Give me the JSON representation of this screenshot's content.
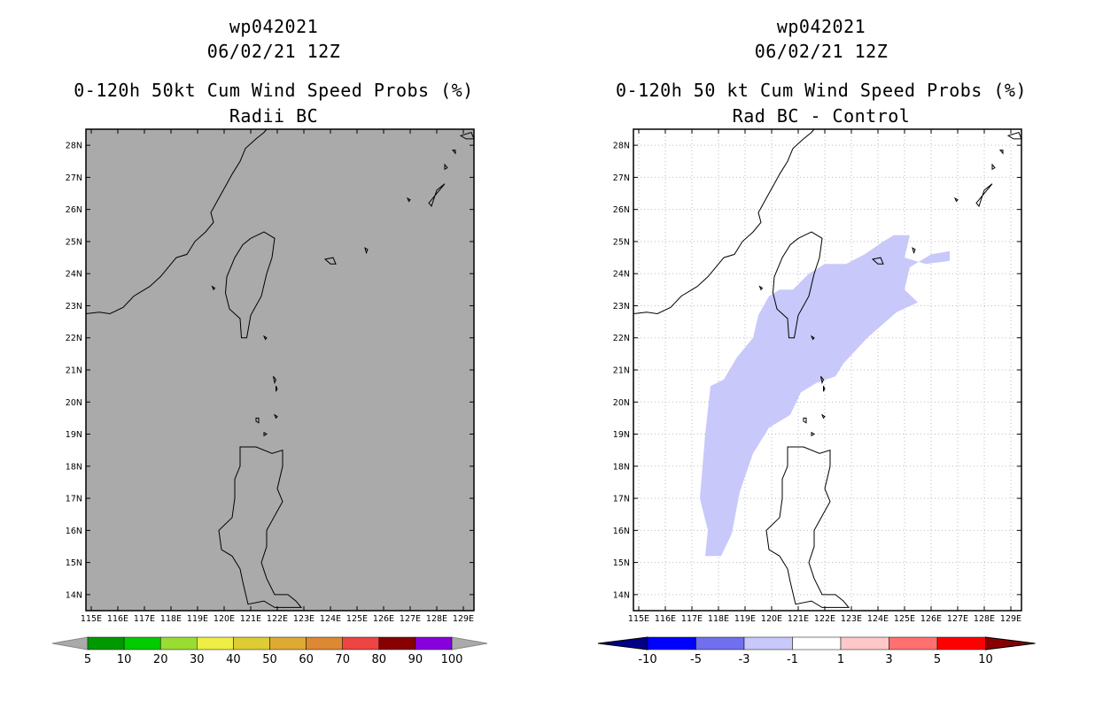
{
  "panels": [
    {
      "id": "left",
      "title_line1": "wp042021",
      "title_line2": "06/02/21 12Z",
      "title_line3": "0-120h 50kt Cum Wind Speed Probs (%)",
      "title_line4": "Radii BC",
      "map_background": "#aaaaaa",
      "colorbar": {
        "labels": [
          "5",
          "10",
          "20",
          "30",
          "40",
          "50",
          "60",
          "70",
          "80",
          "90",
          "100"
        ],
        "colors": [
          "#009900",
          "#00cc00",
          "#99dd33",
          "#eeee44",
          "#ddcc33",
          "#ddaa33",
          "#dd8833",
          "#ee4444",
          "#880000",
          "#8800dd"
        ],
        "end_color": "#aaaaaa"
      }
    },
    {
      "id": "right",
      "title_line1": "wp042021",
      "title_line2": "06/02/21 12Z",
      "title_line3": "0-120h 50 kt Cum Wind Speed Probs (%)",
      "title_line4": "Rad BC - Control",
      "map_background": "#ffffff",
      "shade_color": "#c8c8fa",
      "colorbar": {
        "labels": [
          "-10",
          "-5",
          "-3",
          "-1",
          "1",
          "3",
          "5",
          "10"
        ],
        "colors": [
          "#0000ff",
          "#7070ee",
          "#c8c8fa",
          "#ffffff",
          "#ffc8c8",
          "#ff7070",
          "#ff0000"
        ],
        "low_end_color": "#000088",
        "high_end_color": "#880000"
      }
    }
  ],
  "axes": {
    "lon_labels": [
      "115E",
      "116E",
      "117E",
      "118E",
      "119E",
      "120E",
      "121E",
      "122E",
      "123E",
      "124E",
      "125E",
      "126E",
      "127E",
      "128E",
      "129E"
    ],
    "lat_labels": [
      "14N",
      "15N",
      "16N",
      "17N",
      "18N",
      "19N",
      "20N",
      "21N",
      "22N",
      "23N",
      "24N",
      "25N",
      "26N",
      " 27N",
      "28N"
    ]
  }
}
